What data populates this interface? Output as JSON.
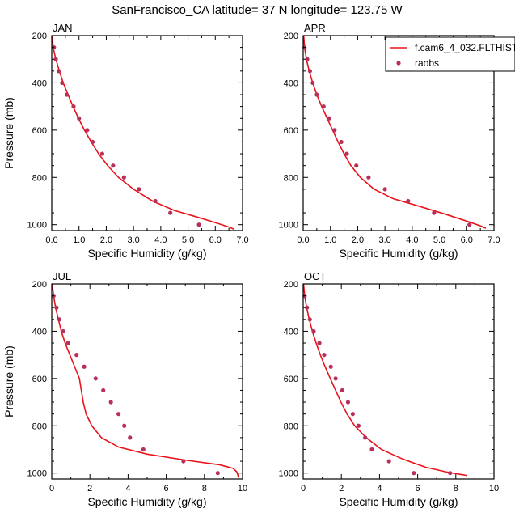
{
  "figure_title": "SanFrancisco_CA  latitude= 37 N longitude= 123.75 W",
  "colors": {
    "model_line": "#e8141c",
    "raobs_marker": "#b8305a",
    "axis": "#000000"
  },
  "legend": {
    "placement": "top-right of APR panel",
    "items": [
      "f.cam6_4_032.FLTHIST",
      "raobs"
    ]
  },
  "chart_data": [
    {
      "type": "line",
      "panel": "JAN",
      "title": "JAN",
      "xlabel": "Specific Humidity (g/kg)",
      "ylabel": "Pressure (mb)",
      "xlim": [
        0,
        7
      ],
      "ylim": [
        1025,
        200
      ],
      "xticks": [
        "0.0",
        "1.0",
        "2.0",
        "3.0",
        "4.0",
        "5.0",
        "6.0",
        "7.0"
      ],
      "yticks": [
        "200",
        "400",
        "600",
        "800",
        "1000"
      ],
      "series": [
        {
          "name": "f.cam6_4_032.FLTHIST",
          "style": "line",
          "points": [
            [
              0.02,
              200
            ],
            [
              0.05,
              250
            ],
            [
              0.15,
              300
            ],
            [
              0.28,
              350
            ],
            [
              0.42,
              400
            ],
            [
              0.6,
              450
            ],
            [
              0.78,
              500
            ],
            [
              0.98,
              550
            ],
            [
              1.2,
              600
            ],
            [
              1.45,
              650
            ],
            [
              1.72,
              700
            ],
            [
              2.05,
              750
            ],
            [
              2.45,
              800
            ],
            [
              3.0,
              850
            ],
            [
              3.7,
              900
            ],
            [
              4.5,
              940
            ],
            [
              5.4,
              970
            ],
            [
              6.1,
              995
            ],
            [
              6.5,
              1010
            ],
            [
              6.7,
              1020
            ]
          ]
        },
        {
          "name": "raobs",
          "style": "markers",
          "points": [
            [
              0.08,
              250
            ],
            [
              0.15,
              300
            ],
            [
              0.25,
              350
            ],
            [
              0.38,
              400
            ],
            [
              0.55,
              450
            ],
            [
              0.8,
              500
            ],
            [
              1.0,
              550
            ],
            [
              1.3,
              600
            ],
            [
              1.5,
              650
            ],
            [
              1.85,
              700
            ],
            [
              2.25,
              750
            ],
            [
              2.65,
              800
            ],
            [
              3.2,
              850
            ],
            [
              3.8,
              900
            ],
            [
              4.35,
              950
            ],
            [
              5.4,
              1000
            ]
          ]
        }
      ]
    },
    {
      "type": "line",
      "panel": "APR",
      "title": "APR",
      "xlabel": "Specific Humidity (g/kg)",
      "ylabel": "",
      "xlim": [
        0,
        7
      ],
      "ylim": [
        1025,
        200
      ],
      "xticks": [
        "0.0",
        "1.0",
        "2.0",
        "3.0",
        "4.0",
        "5.0",
        "6.0",
        "7.0"
      ],
      "yticks": [
        "200",
        "400",
        "600",
        "800",
        "1000"
      ],
      "series": [
        {
          "name": "f.cam6_4_032.FLTHIST",
          "style": "line",
          "points": [
            [
              0.02,
              200
            ],
            [
              0.05,
              250
            ],
            [
              0.12,
              300
            ],
            [
              0.22,
              350
            ],
            [
              0.35,
              400
            ],
            [
              0.5,
              450
            ],
            [
              0.68,
              500
            ],
            [
              0.88,
              550
            ],
            [
              1.08,
              600
            ],
            [
              1.28,
              650
            ],
            [
              1.5,
              700
            ],
            [
              1.75,
              750
            ],
            [
              2.1,
              800
            ],
            [
              2.6,
              850
            ],
            [
              3.3,
              890
            ],
            [
              4.2,
              920
            ],
            [
              5.2,
              955
            ],
            [
              6.0,
              985
            ],
            [
              6.5,
              1005
            ],
            [
              6.7,
              1015
            ]
          ]
        },
        {
          "name": "raobs",
          "style": "markers",
          "points": [
            [
              0.05,
              250
            ],
            [
              0.15,
              300
            ],
            [
              0.25,
              350
            ],
            [
              0.35,
              400
            ],
            [
              0.5,
              450
            ],
            [
              0.75,
              500
            ],
            [
              0.95,
              550
            ],
            [
              1.15,
              600
            ],
            [
              1.4,
              650
            ],
            [
              1.6,
              700
            ],
            [
              1.95,
              750
            ],
            [
              2.4,
              800
            ],
            [
              3.0,
              850
            ],
            [
              3.85,
              900
            ],
            [
              4.8,
              950
            ],
            [
              6.1,
              1000
            ]
          ]
        }
      ]
    },
    {
      "type": "line",
      "panel": "JUL",
      "title": "JUL",
      "xlabel": "Specific Humidity (g/kg)",
      "ylabel": "Pressure (mb)",
      "xlim": [
        0,
        10
      ],
      "ylim": [
        1025,
        200
      ],
      "xticks": [
        "0",
        "2",
        "4",
        "6",
        "8",
        "10"
      ],
      "yticks": [
        "200",
        "400",
        "600",
        "800",
        "1000"
      ],
      "series": [
        {
          "name": "f.cam6_4_032.FLTHIST",
          "style": "line",
          "points": [
            [
              0.02,
              200
            ],
            [
              0.1,
              250
            ],
            [
              0.2,
              300
            ],
            [
              0.35,
              350
            ],
            [
              0.5,
              400
            ],
            [
              0.7,
              450
            ],
            [
              0.95,
              500
            ],
            [
              1.2,
              550
            ],
            [
              1.45,
              600
            ],
            [
              1.55,
              650
            ],
            [
              1.65,
              700
            ],
            [
              1.8,
              750
            ],
            [
              2.1,
              800
            ],
            [
              2.6,
              850
            ],
            [
              3.5,
              890
            ],
            [
              5.0,
              920
            ],
            [
              7.0,
              945
            ],
            [
              8.8,
              965
            ],
            [
              9.5,
              980
            ],
            [
              9.7,
              995
            ],
            [
              9.8,
              1020
            ]
          ]
        },
        {
          "name": "raobs",
          "style": "markers",
          "points": [
            [
              0.1,
              250
            ],
            [
              0.25,
              300
            ],
            [
              0.4,
              350
            ],
            [
              0.6,
              400
            ],
            [
              0.85,
              450
            ],
            [
              1.3,
              500
            ],
            [
              1.7,
              550
            ],
            [
              2.3,
              600
            ],
            [
              2.7,
              650
            ],
            [
              3.1,
              700
            ],
            [
              3.5,
              750
            ],
            [
              3.8,
              800
            ],
            [
              4.1,
              850
            ],
            [
              4.8,
              900
            ],
            [
              6.9,
              950
            ],
            [
              8.7,
              1000
            ]
          ]
        }
      ]
    },
    {
      "type": "line",
      "panel": "OCT",
      "title": "OCT",
      "xlabel": "Specific Humidity (g/kg)",
      "ylabel": "",
      "xlim": [
        0,
        10
      ],
      "ylim": [
        1025,
        200
      ],
      "xticks": [
        "0",
        "2",
        "4",
        "6",
        "8",
        "10"
      ],
      "yticks": [
        "200",
        "400",
        "600",
        "800",
        "1000"
      ],
      "series": [
        {
          "name": "f.cam6_4_032.FLTHIST",
          "style": "line",
          "points": [
            [
              0.02,
              200
            ],
            [
              0.08,
              250
            ],
            [
              0.18,
              300
            ],
            [
              0.32,
              350
            ],
            [
              0.48,
              400
            ],
            [
              0.68,
              450
            ],
            [
              0.9,
              500
            ],
            [
              1.15,
              550
            ],
            [
              1.42,
              600
            ],
            [
              1.7,
              650
            ],
            [
              1.98,
              700
            ],
            [
              2.3,
              750
            ],
            [
              2.7,
              800
            ],
            [
              3.3,
              850
            ],
            [
              4.1,
              900
            ],
            [
              5.2,
              940
            ],
            [
              6.4,
              975
            ],
            [
              7.5,
              995
            ],
            [
              8.2,
              1005
            ],
            [
              8.6,
              1010
            ]
          ]
        },
        {
          "name": "raobs",
          "style": "markers",
          "points": [
            [
              0.08,
              250
            ],
            [
              0.2,
              300
            ],
            [
              0.35,
              350
            ],
            [
              0.55,
              400
            ],
            [
              0.85,
              450
            ],
            [
              1.1,
              500
            ],
            [
              1.45,
              550
            ],
            [
              1.7,
              600
            ],
            [
              2.05,
              650
            ],
            [
              2.35,
              700
            ],
            [
              2.6,
              750
            ],
            [
              2.9,
              800
            ],
            [
              3.25,
              850
            ],
            [
              3.6,
              900
            ],
            [
              4.5,
              950
            ],
            [
              5.8,
              1000
            ],
            [
              7.7,
              1000
            ]
          ]
        }
      ]
    }
  ]
}
